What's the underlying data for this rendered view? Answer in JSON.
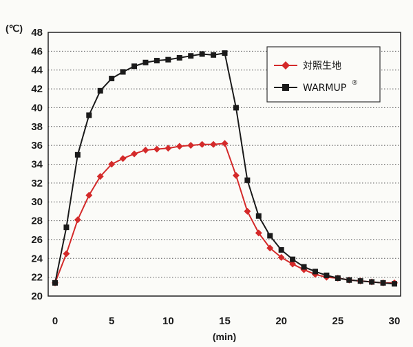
{
  "chart_data": {
    "type": "line",
    "ylabel": "(℃)",
    "xlabel": "(min)",
    "xlim": [
      0,
      30
    ],
    "ylim": [
      20,
      48
    ],
    "x_ticks": [
      0,
      5,
      10,
      15,
      20,
      25,
      30
    ],
    "y_ticks": [
      20,
      22,
      24,
      26,
      28,
      30,
      32,
      34,
      36,
      38,
      40,
      42,
      44,
      46,
      48
    ],
    "grid": "horizontal dotted",
    "legend_position": "top-right",
    "x": [
      0,
      1,
      2,
      3,
      4,
      5,
      6,
      7,
      8,
      9,
      10,
      11,
      12,
      13,
      14,
      15,
      16,
      17,
      18,
      19,
      20,
      21,
      22,
      23,
      24,
      25,
      26,
      27,
      28,
      29,
      30
    ],
    "series": [
      {
        "name": "対照生地",
        "color": "#d42a2a",
        "marker": "diamond",
        "values": [
          21.4,
          24.5,
          28.1,
          30.7,
          32.7,
          34.0,
          34.6,
          35.1,
          35.5,
          35.6,
          35.7,
          35.9,
          36.0,
          36.1,
          36.1,
          36.2,
          32.8,
          29.0,
          26.7,
          25.1,
          24.1,
          23.4,
          22.8,
          22.3,
          22.0,
          21.9,
          21.7,
          21.6,
          21.5,
          21.4,
          21.4
        ]
      },
      {
        "name": "WARMUP",
        "name_sup": "®",
        "color": "#1a1a1a",
        "marker": "square",
        "values": [
          21.4,
          27.3,
          35.0,
          39.2,
          41.8,
          43.1,
          43.8,
          44.4,
          44.8,
          45.0,
          45.1,
          45.3,
          45.5,
          45.7,
          45.6,
          45.8,
          40.0,
          32.3,
          28.5,
          26.4,
          24.9,
          23.9,
          23.1,
          22.6,
          22.2,
          21.9,
          21.7,
          21.6,
          21.5,
          21.4,
          21.3
        ]
      }
    ]
  }
}
